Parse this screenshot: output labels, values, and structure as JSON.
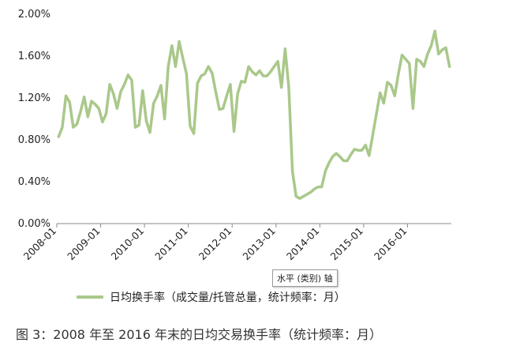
{
  "chart_data": {
    "type": "line",
    "title": "",
    "xlabel": "",
    "ylabel": "",
    "ylim": [
      0,
      2.0
    ],
    "yticks": [
      "0.00%",
      "0.40%",
      "0.80%",
      "1.20%",
      "1.60%",
      "2.00%"
    ],
    "xticks": [
      "2008-01",
      "2009-01",
      "2010-01",
      "2011-01",
      "2012-01",
      "2013-01",
      "2014-01",
      "2015-01",
      "2016-01"
    ],
    "grid": false,
    "legend_position": "bottom",
    "series": [
      {
        "name": "日均换手率（成交量/托管总量，统计频率：月）",
        "color": "#a9c88a",
        "x_start": "2008-01",
        "frequency": "monthly",
        "values": [
          0.83,
          0.92,
          1.22,
          1.16,
          0.92,
          0.95,
          1.07,
          1.21,
          1.02,
          1.17,
          1.14,
          1.1,
          0.97,
          1.05,
          1.33,
          1.24,
          1.1,
          1.26,
          1.33,
          1.42,
          1.37,
          0.92,
          0.94,
          1.27,
          0.98,
          0.87,
          1.15,
          1.22,
          1.32,
          1.0,
          1.5,
          1.7,
          1.5,
          1.74,
          1.58,
          1.43,
          0.93,
          0.86,
          1.34,
          1.41,
          1.43,
          1.5,
          1.44,
          1.26,
          1.09,
          1.1,
          1.22,
          1.33,
          0.88,
          1.24,
          1.36,
          1.35,
          1.5,
          1.45,
          1.42,
          1.46,
          1.41,
          1.41,
          1.45,
          1.5,
          1.55,
          1.3,
          1.67,
          1.3,
          0.5,
          0.26,
          0.24,
          0.26,
          0.28,
          0.3,
          0.33,
          0.35,
          0.35,
          0.5,
          0.58,
          0.64,
          0.67,
          0.64,
          0.6,
          0.6,
          0.66,
          0.71,
          0.7,
          0.7,
          0.75,
          0.65,
          0.85,
          1.05,
          1.25,
          1.15,
          1.35,
          1.32,
          1.22,
          1.43,
          1.61,
          1.57,
          1.53,
          1.1,
          1.57,
          1.55,
          1.5,
          1.62,
          1.7,
          1.84,
          1.62,
          1.66,
          1.68,
          1.5
        ]
      }
    ]
  },
  "tooltip": "水平 (类别) 轴",
  "legend_label": "日均换手率（成交量/托管总量，统计频率：月）",
  "caption": "图 3：2008 年至 2016 年末的日均交易换手率（统计频率：月）"
}
